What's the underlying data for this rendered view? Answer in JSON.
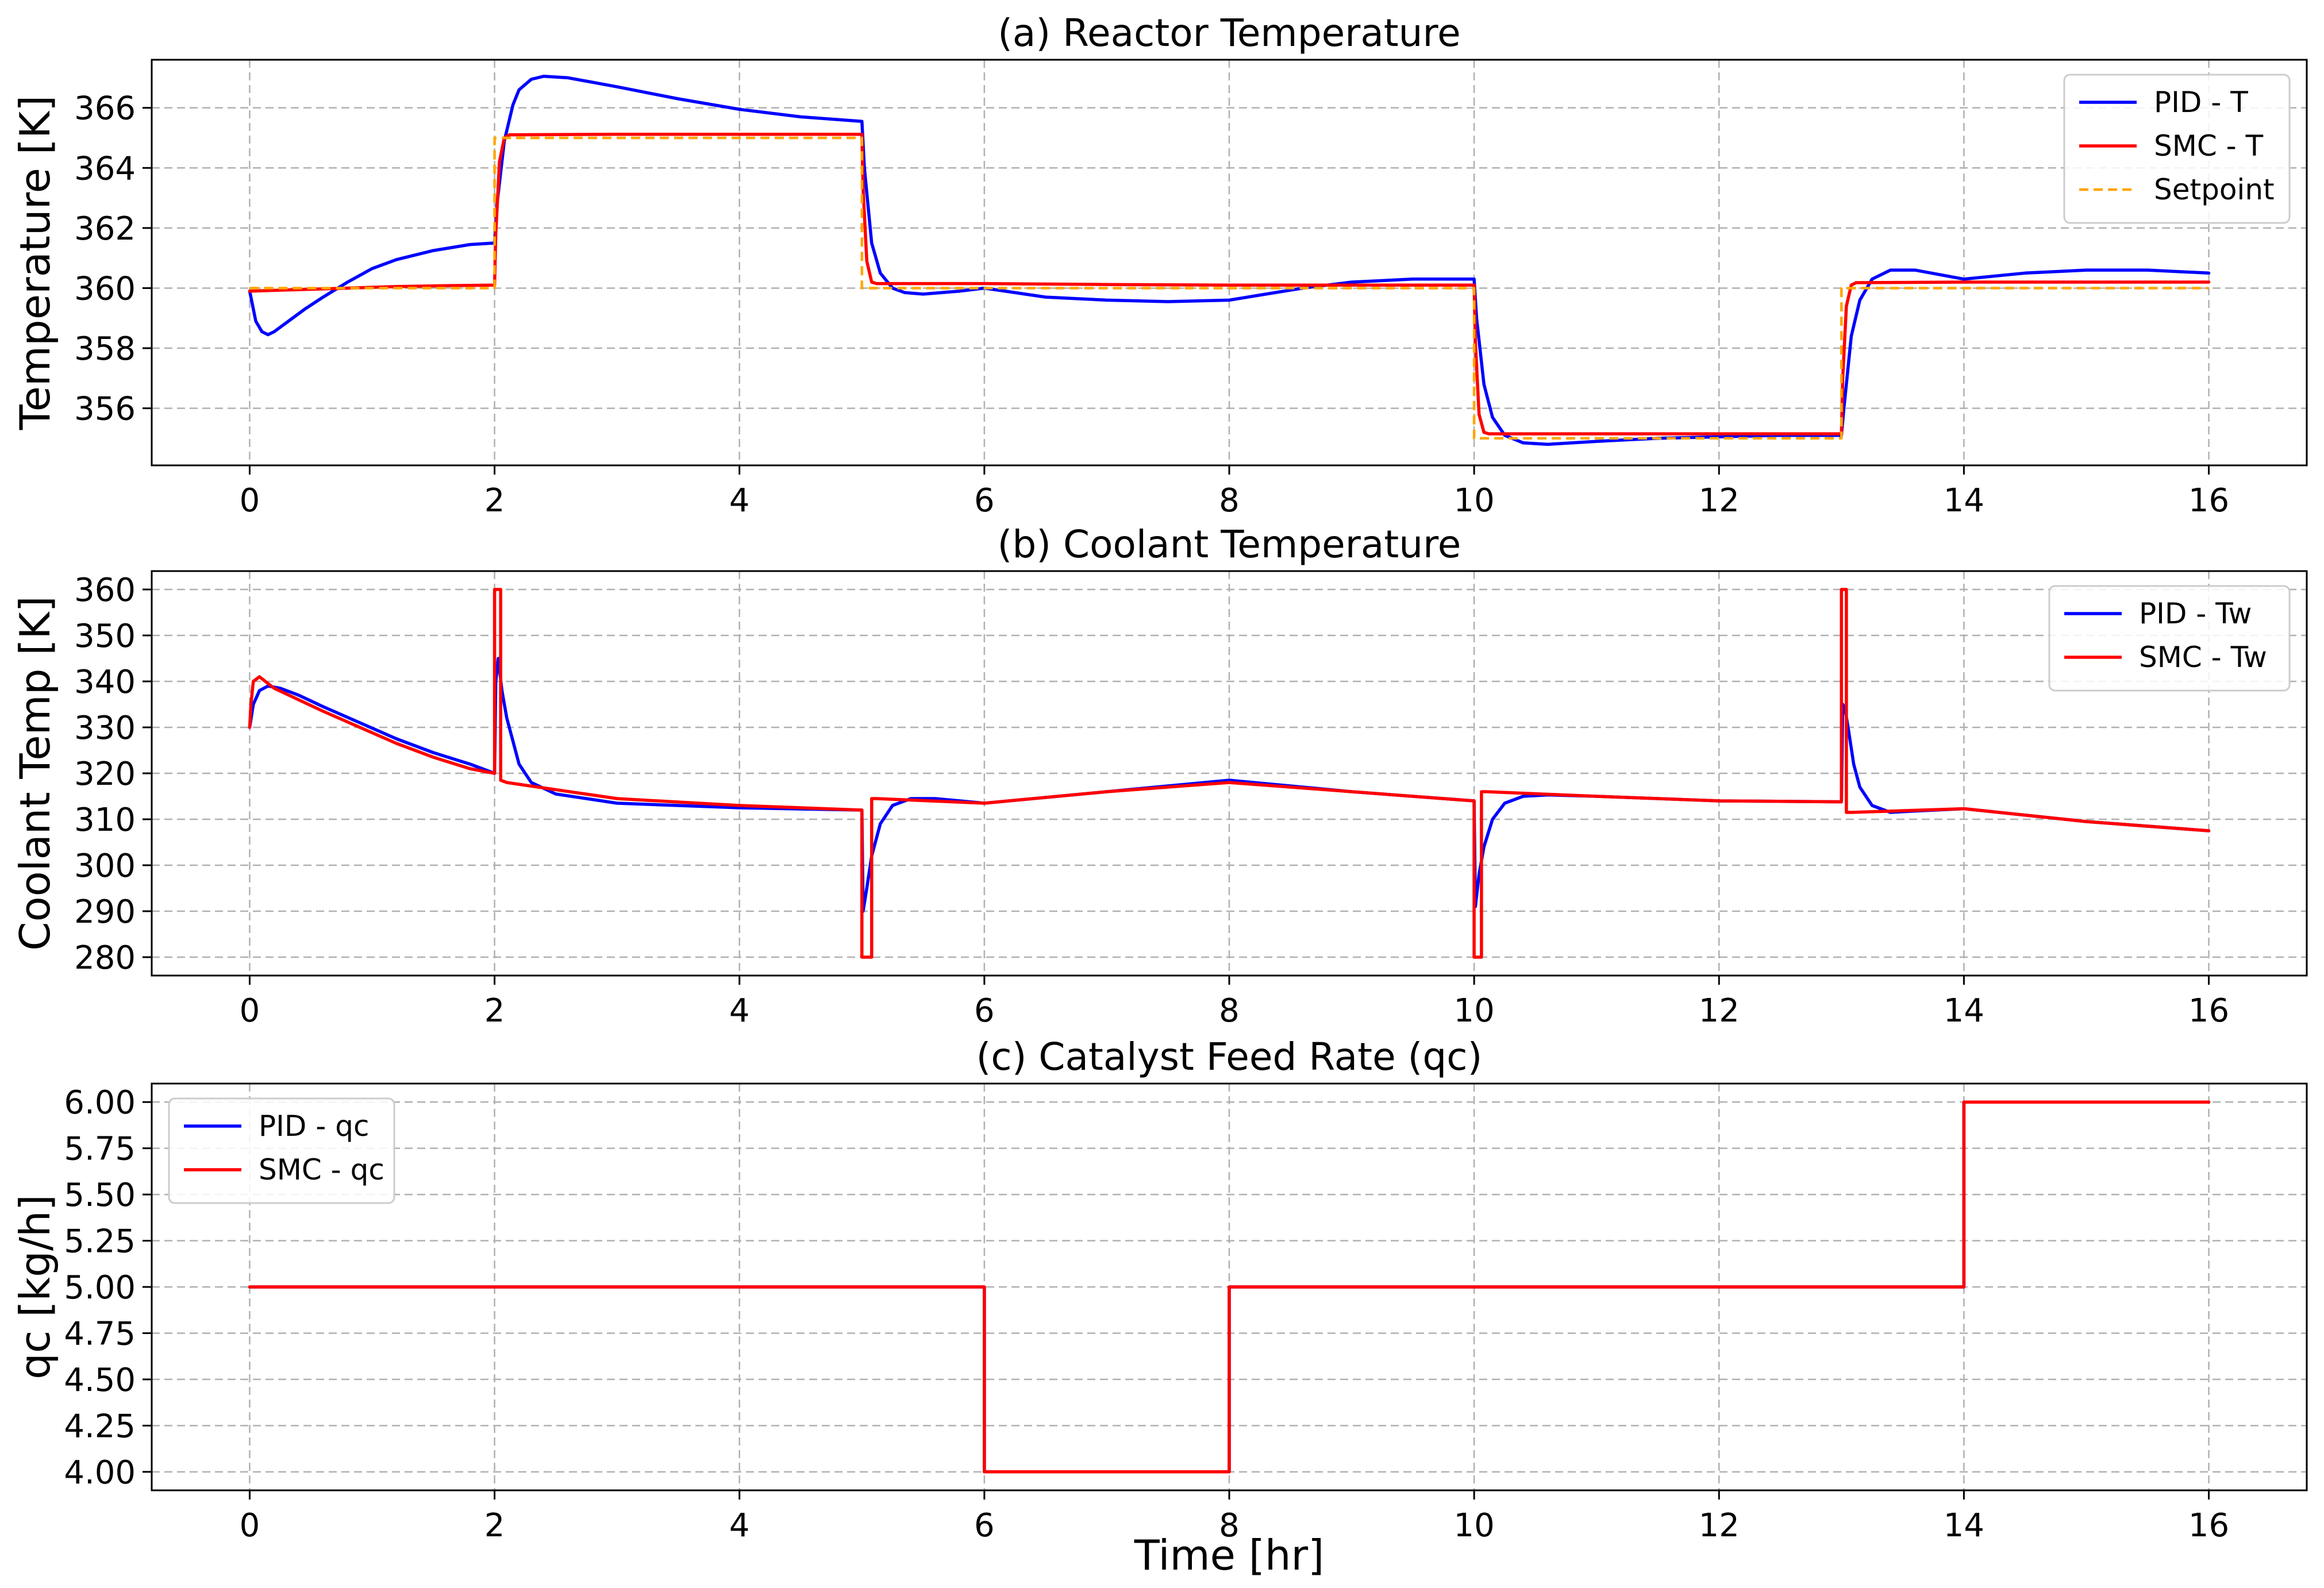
{
  "chart_data": [
    {
      "type": "line",
      "title": "(a) Reactor Temperature",
      "xlabel": "",
      "ylabel": "Temperature [K]",
      "xlim": [
        -0.8,
        16.8
      ],
      "ylim": [
        354.1,
        367.6
      ],
      "xticks": [
        0,
        2,
        4,
        6,
        8,
        10,
        12,
        14,
        16
      ],
      "yticks": [
        356,
        358,
        360,
        362,
        364,
        366
      ],
      "grid": true,
      "legend_position": "top-right",
      "series": [
        {
          "name": "PID - T",
          "color": "#0000ff",
          "dash": "solid",
          "x": [
            0,
            0.05,
            0.1,
            0.15,
            0.2,
            0.3,
            0.45,
            0.6,
            0.8,
            1.0,
            1.2,
            1.5,
            1.8,
            2.0,
            2.02,
            2.08,
            2.15,
            2.2,
            2.3,
            2.4,
            2.6,
            3.0,
            3.5,
            4.0,
            4.5,
            5.0,
            5.02,
            5.08,
            5.15,
            5.25,
            5.35,
            5.5,
            5.8,
            6.0,
            6.5,
            7.0,
            7.5,
            8.0,
            8.3,
            8.6,
            9.0,
            9.5,
            10.0,
            10.02,
            10.08,
            10.15,
            10.25,
            10.4,
            10.6,
            11.0,
            11.5,
            12.0,
            12.5,
            13.0,
            13.02,
            13.08,
            13.15,
            13.25,
            13.4,
            13.6,
            14.0,
            14.5,
            15.0,
            15.5,
            16.0
          ],
          "y": [
            359.9,
            358.9,
            358.55,
            358.45,
            358.55,
            358.85,
            359.3,
            359.7,
            360.2,
            360.65,
            360.95,
            361.25,
            361.45,
            361.5,
            362.8,
            364.9,
            366.1,
            366.6,
            366.95,
            367.05,
            367.0,
            366.7,
            366.3,
            365.95,
            365.7,
            365.55,
            364.0,
            361.5,
            360.5,
            360.0,
            359.85,
            359.8,
            359.9,
            360.0,
            359.7,
            359.6,
            359.55,
            359.6,
            359.8,
            360.0,
            360.2,
            360.3,
            360.3,
            359.0,
            356.8,
            355.7,
            355.1,
            354.85,
            354.8,
            354.9,
            355.0,
            355.05,
            355.1,
            355.1,
            356.0,
            358.4,
            359.6,
            360.3,
            360.6,
            360.6,
            360.3,
            360.5,
            360.6,
            360.6,
            360.5
          ]
        },
        {
          "name": "SMC - T",
          "color": "#ff0000",
          "dash": "solid",
          "x": [
            0,
            0.4,
            0.8,
            1.2,
            1.6,
            2.0,
            2.01,
            2.04,
            2.08,
            2.12,
            3.0,
            4.0,
            5.0,
            5.01,
            5.04,
            5.08,
            5.12,
            6.0,
            7.0,
            8.0,
            9.0,
            10.0,
            10.01,
            10.04,
            10.08,
            10.12,
            11.0,
            12.0,
            13.0,
            13.01,
            13.04,
            13.08,
            13.12,
            14.0,
            15.0,
            16.0
          ],
          "y": [
            359.9,
            359.95,
            360.0,
            360.05,
            360.08,
            360.1,
            361.8,
            364.2,
            365.0,
            365.1,
            365.12,
            365.12,
            365.12,
            363.3,
            360.9,
            360.2,
            360.15,
            360.15,
            360.12,
            360.1,
            360.1,
            360.1,
            358.2,
            355.8,
            355.2,
            355.15,
            355.15,
            355.15,
            355.15,
            357.0,
            359.4,
            360.1,
            360.18,
            360.2,
            360.2,
            360.2
          ]
        },
        {
          "name": "Setpoint",
          "color": "#ffa500",
          "dash": "dashed",
          "x": [
            0,
            2,
            2,
            5,
            5,
            10,
            10,
            13,
            13,
            16
          ],
          "y": [
            360,
            360,
            365,
            365,
            360,
            360,
            355,
            355,
            360,
            360
          ]
        }
      ]
    },
    {
      "type": "line",
      "title": "(b) Coolant Temperature",
      "xlabel": "",
      "ylabel": "Coolant Temp [K]",
      "xlim": [
        -0.8,
        16.8
      ],
      "ylim": [
        276,
        364
      ],
      "xticks": [
        0,
        2,
        4,
        6,
        8,
        10,
        12,
        14,
        16
      ],
      "yticks": [
        280,
        290,
        300,
        310,
        320,
        330,
        340,
        350,
        360
      ],
      "grid": true,
      "legend_position": "top-right",
      "series": [
        {
          "name": "PID - Tw",
          "color": "#0000ff",
          "dash": "solid",
          "x": [
            0,
            0.03,
            0.08,
            0.15,
            0.25,
            0.4,
            0.6,
            0.9,
            1.2,
            1.5,
            1.8,
            2.0,
            2.01,
            2.03,
            2.06,
            2.1,
            2.15,
            2.2,
            2.3,
            2.5,
            3.0,
            4.0,
            5.0,
            5.01,
            5.04,
            5.08,
            5.15,
            5.25,
            5.4,
            5.6,
            6.0,
            7.0,
            8.0,
            9.0,
            10.0,
            10.01,
            10.04,
            10.08,
            10.15,
            10.25,
            10.4,
            10.6,
            11.0,
            12.0,
            13.0,
            13.01,
            13.03,
            13.06,
            13.1,
            13.15,
            13.25,
            13.4,
            13.6,
            14.0,
            15.0,
            16.0
          ],
          "y": [
            330,
            335,
            338,
            339,
            338.5,
            337,
            334.5,
            331,
            327.5,
            324.5,
            322,
            320,
            340,
            345,
            338,
            332,
            327,
            322,
            318,
            315.5,
            313.5,
            312.5,
            312,
            290,
            295,
            302,
            309,
            313,
            314.5,
            314.5,
            313.5,
            316,
            318.5,
            316,
            314,
            291,
            298,
            304,
            310,
            313.5,
            315,
            315.3,
            315,
            314,
            313.8,
            335,
            334,
            329,
            322,
            317,
            313,
            311.5,
            311.8,
            312.3,
            309.5,
            307.5
          ]
        },
        {
          "name": "SMC - Tw",
          "color": "#ff0000",
          "dash": "solid",
          "x": [
            0,
            0.01,
            0.03,
            0.08,
            0.2,
            0.4,
            0.6,
            0.9,
            1.2,
            1.5,
            1.8,
            2.0,
            2.0,
            2.05,
            2.05,
            2.1,
            3.0,
            4.0,
            5.0,
            5.0,
            5.08,
            5.08,
            5.12,
            6.0,
            7.0,
            8.0,
            9.0,
            10.0,
            10.0,
            10.06,
            10.06,
            10.1,
            11.0,
            12.0,
            13.0,
            13.0,
            13.04,
            13.04,
            13.08,
            14.0,
            15.0,
            16.0
          ],
          "y": [
            330,
            335,
            340,
            341,
            338.5,
            336,
            333.5,
            330,
            326.5,
            323.5,
            321,
            320,
            360,
            360,
            318.5,
            318,
            314.5,
            313,
            312,
            280,
            280,
            314.5,
            314.5,
            313.5,
            316,
            318,
            316,
            314,
            280,
            280,
            316,
            316,
            315,
            314,
            313.8,
            360,
            360,
            311.5,
            311.5,
            312.3,
            309.5,
            307.5
          ]
        }
      ]
    },
    {
      "type": "line",
      "title": "(c) Catalyst Feed Rate (qc)",
      "xlabel": "Time [hr]",
      "ylabel": "qc [kg/h]",
      "xlim": [
        -0.8,
        16.8
      ],
      "ylim": [
        3.9,
        6.1
      ],
      "xticks": [
        0,
        2,
        4,
        6,
        8,
        10,
        12,
        14,
        16
      ],
      "yticks": [
        "4.00",
        "4.25",
        "4.50",
        "4.75",
        "5.00",
        "5.25",
        "5.50",
        "5.75",
        "6.00"
      ],
      "grid": true,
      "legend_position": "top-left",
      "series": [
        {
          "name": "PID - qc",
          "color": "#0000ff",
          "dash": "solid",
          "x": [
            0,
            6,
            6,
            8,
            8,
            14,
            14,
            16
          ],
          "y": [
            5,
            5,
            4,
            4,
            5,
            5,
            6,
            6
          ]
        },
        {
          "name": "SMC - qc",
          "color": "#ff0000",
          "dash": "solid",
          "x": [
            0,
            6,
            6,
            8,
            8,
            14,
            14,
            16
          ],
          "y": [
            5,
            5,
            4,
            4,
            5,
            5,
            6,
            6
          ]
        }
      ]
    }
  ]
}
